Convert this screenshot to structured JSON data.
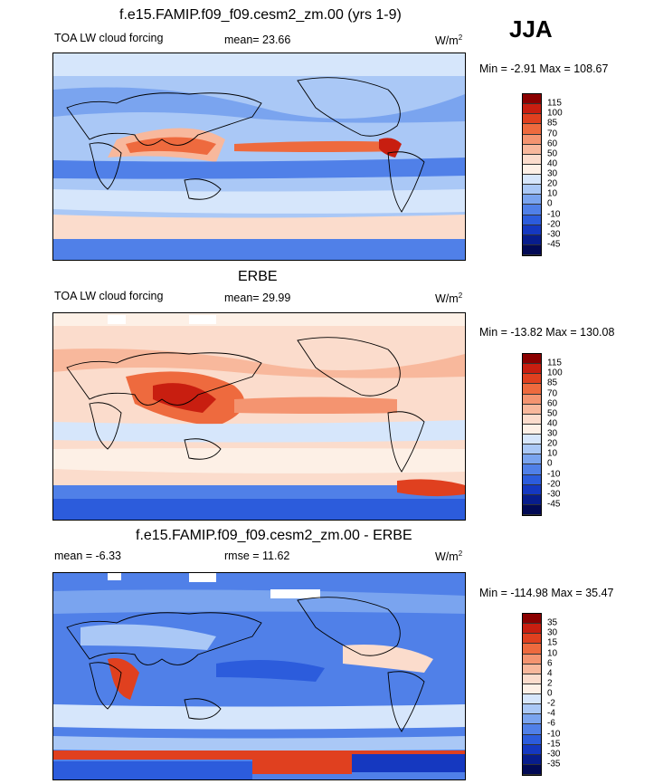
{
  "header": {
    "top_title": "f.e15.FAMIP.f09_f09.cesm2_zm.00 (yrs 1-9)",
    "season": "JJA"
  },
  "panels": [
    {
      "title": "",
      "left_label": "TOA LW cloud forcing",
      "center_label": "mean=  23.66",
      "units": "W/m",
      "units_sup": "2",
      "minmax": "Min =  -2.91 Max = 108.67",
      "levels": [
        "115",
        "100",
        "85",
        "70",
        "60",
        "50",
        "40",
        "30",
        "20",
        "10",
        "0",
        "-10",
        "-20",
        "-30",
        "-45"
      ],
      "colors": [
        "#8b0000",
        "#c81e10",
        "#e0401f",
        "#ee6a3e",
        "#f49470",
        "#f8b89c",
        "#fbdccc",
        "#fdf0e6",
        "#d6e6fb",
        "#aac8f6",
        "#7aa4ef",
        "#5080e8",
        "#2c5cdc",
        "#1538c0",
        "#081d8c",
        "#020a55"
      ]
    },
    {
      "title": "ERBE",
      "left_label": "TOA LW cloud forcing",
      "center_label": "mean=  29.99",
      "units": "W/m",
      "units_sup": "2",
      "minmax": "Min = -13.82 Max = 130.08",
      "levels": [
        "115",
        "100",
        "85",
        "70",
        "60",
        "50",
        "40",
        "30",
        "20",
        "10",
        "0",
        "-10",
        "-20",
        "-30",
        "-45"
      ],
      "colors": [
        "#8b0000",
        "#c81e10",
        "#e0401f",
        "#ee6a3e",
        "#f49470",
        "#f8b89c",
        "#fbdccc",
        "#fdf0e6",
        "#d6e6fb",
        "#aac8f6",
        "#7aa4ef",
        "#5080e8",
        "#2c5cdc",
        "#1538c0",
        "#081d8c",
        "#020a55"
      ]
    },
    {
      "title": "f.e15.FAMIP.f09_f09.cesm2_zm.00 - ERBE",
      "left_label": "mean =  -6.33",
      "center_label": "rmse =  11.62",
      "units": "W/m",
      "units_sup": "2",
      "minmax": "Min = -114.98 Max =  35.47",
      "levels": [
        "35",
        "30",
        "15",
        "10",
        "6",
        "4",
        "2",
        "0",
        "-2",
        "-4",
        "-6",
        "-10",
        "-15",
        "-30",
        "-35"
      ],
      "colors": [
        "#8b0000",
        "#c81e10",
        "#e0401f",
        "#ee6a3e",
        "#f49470",
        "#f8b89c",
        "#fbdccc",
        "#fdf0e6",
        "#d6e6fb",
        "#aac8f6",
        "#7aa4ef",
        "#5080e8",
        "#2c5cdc",
        "#1538c0",
        "#081d8c",
        "#020a55"
      ]
    }
  ]
}
